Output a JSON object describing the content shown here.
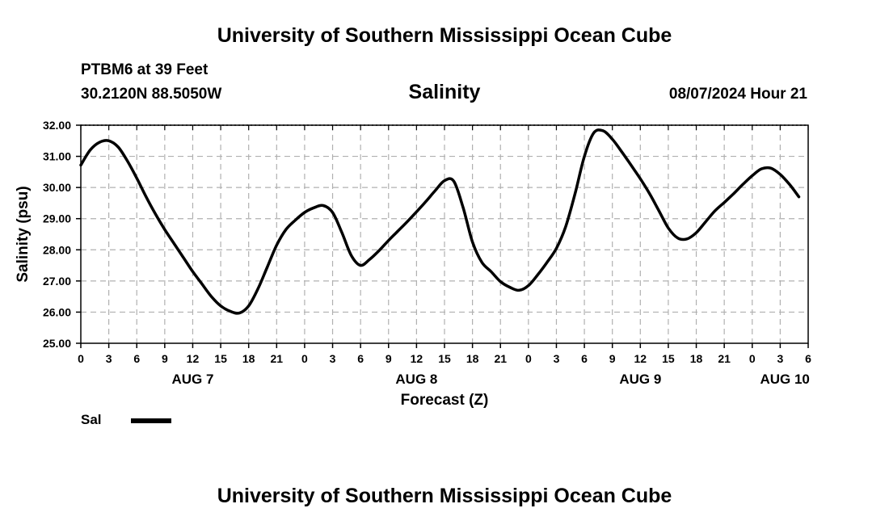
{
  "header": {
    "title_top": "University of Southern Mississippi Ocean Cube",
    "station": "PTBM6 at 39 Feet",
    "coords": "30.2120N  88.5050W",
    "datetime": "08/07/2024 Hour 21",
    "title_bottom": "University of Southern Mississippi Ocean Cube"
  },
  "legend": {
    "label": "Sal"
  },
  "chart_data": {
    "type": "line",
    "title": "Salinity",
    "xlabel": "Forecast (Z)",
    "ylabel": "Salinity (psu)",
    "ylim": [
      25.0,
      32.0
    ],
    "yticks": [
      "25.00",
      "26.00",
      "27.00",
      "28.00",
      "29.00",
      "30.00",
      "31.00",
      "32.00"
    ],
    "xlim_hours": [
      0,
      78
    ],
    "xtick_labels": [
      "0",
      "3",
      "6",
      "9",
      "12",
      "15",
      "18",
      "21",
      "0",
      "3",
      "6",
      "9",
      "12",
      "15",
      "18",
      "21",
      "0",
      "3",
      "6",
      "9",
      "12",
      "15",
      "18",
      "21",
      "0",
      "3",
      "6"
    ],
    "day_labels": [
      {
        "text": "AUG 7",
        "hour": 12
      },
      {
        "text": "AUG 8",
        "hour": 36
      },
      {
        "text": "AUG 9",
        "hour": 60
      },
      {
        "text": "AUG 10",
        "hour": 75.5
      }
    ],
    "grid": true,
    "series": [
      {
        "name": "Sal",
        "color": "#000000",
        "points": [
          [
            0,
            30.72
          ],
          [
            1,
            31.2
          ],
          [
            2,
            31.45
          ],
          [
            3,
            31.5
          ],
          [
            4,
            31.3
          ],
          [
            5,
            30.85
          ],
          [
            6,
            30.3
          ],
          [
            7,
            29.7
          ],
          [
            8,
            29.15
          ],
          [
            9,
            28.65
          ],
          [
            10,
            28.2
          ],
          [
            11,
            27.75
          ],
          [
            12,
            27.3
          ],
          [
            13,
            26.9
          ],
          [
            14,
            26.5
          ],
          [
            15,
            26.2
          ],
          [
            16,
            26.03
          ],
          [
            17,
            25.97
          ],
          [
            18,
            26.2
          ],
          [
            19,
            26.75
          ],
          [
            20,
            27.45
          ],
          [
            21,
            28.15
          ],
          [
            22,
            28.65
          ],
          [
            23,
            28.95
          ],
          [
            24,
            29.2
          ],
          [
            25,
            29.35
          ],
          [
            26,
            29.42
          ],
          [
            27,
            29.2
          ],
          [
            28,
            28.55
          ],
          [
            29,
            27.82
          ],
          [
            30,
            27.5
          ],
          [
            31,
            27.7
          ],
          [
            32,
            27.98
          ],
          [
            33,
            28.3
          ],
          [
            34,
            28.6
          ],
          [
            35,
            28.9
          ],
          [
            36,
            29.22
          ],
          [
            37,
            29.55
          ],
          [
            38,
            29.9
          ],
          [
            39,
            30.22
          ],
          [
            40,
            30.2
          ],
          [
            41,
            29.35
          ],
          [
            42,
            28.25
          ],
          [
            43,
            27.6
          ],
          [
            44,
            27.3
          ],
          [
            45,
            26.98
          ],
          [
            46,
            26.8
          ],
          [
            47,
            26.7
          ],
          [
            48,
            26.85
          ],
          [
            49,
            27.2
          ],
          [
            50,
            27.6
          ],
          [
            51,
            28.05
          ],
          [
            52,
            28.75
          ],
          [
            53,
            29.8
          ],
          [
            54,
            31.0
          ],
          [
            55,
            31.75
          ],
          [
            56,
            31.82
          ],
          [
            57,
            31.55
          ],
          [
            58,
            31.15
          ],
          [
            59,
            30.72
          ],
          [
            60,
            30.28
          ],
          [
            61,
            29.8
          ],
          [
            62,
            29.25
          ],
          [
            63,
            28.7
          ],
          [
            64,
            28.38
          ],
          [
            65,
            28.35
          ],
          [
            66,
            28.55
          ],
          [
            67,
            28.9
          ],
          [
            68,
            29.25
          ],
          [
            69,
            29.52
          ],
          [
            70,
            29.8
          ],
          [
            71,
            30.1
          ],
          [
            72,
            30.38
          ],
          [
            73,
            30.6
          ],
          [
            74,
            30.62
          ],
          [
            75,
            30.42
          ],
          [
            76,
            30.1
          ],
          [
            77,
            29.7
          ]
        ]
      }
    ]
  }
}
